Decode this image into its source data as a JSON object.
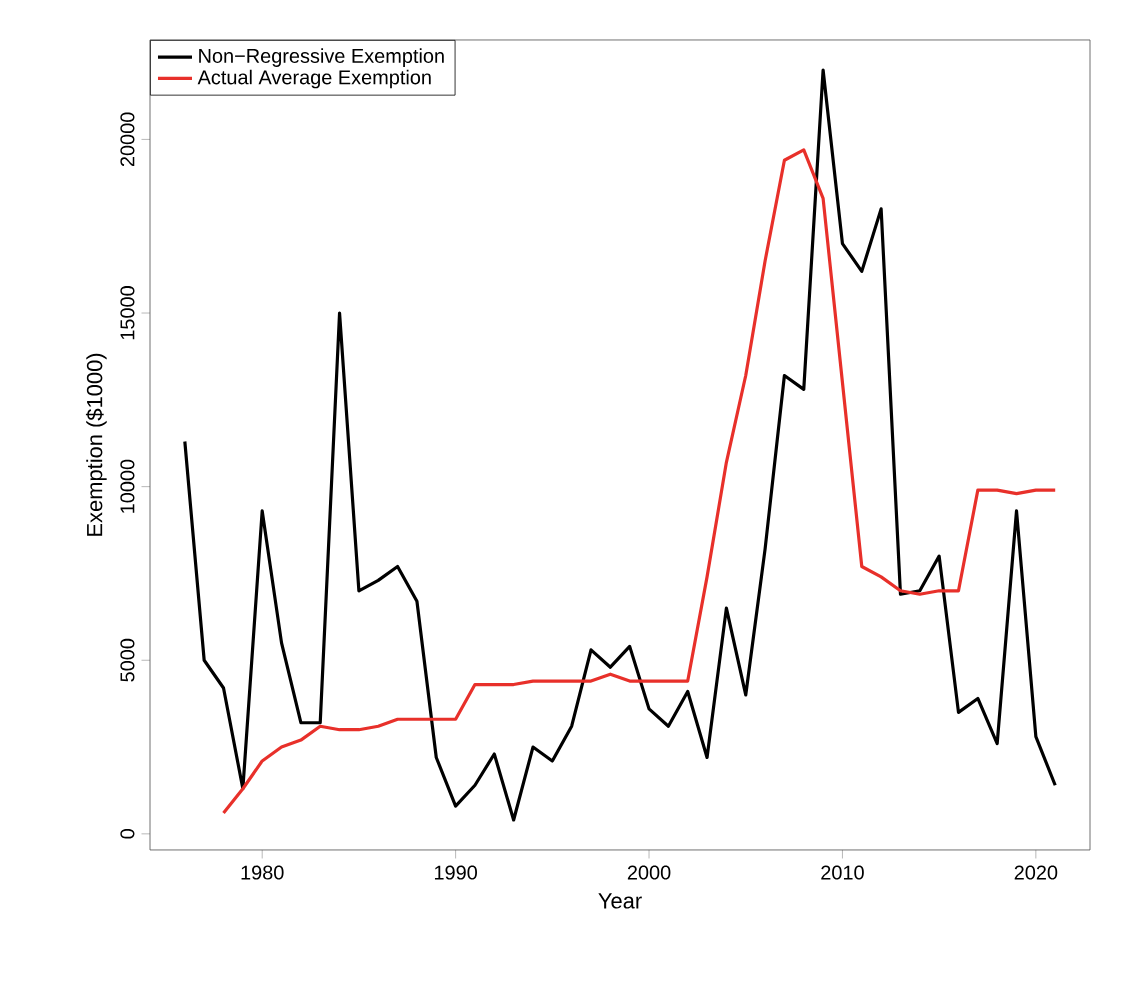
{
  "chart_data": {
    "type": "line",
    "xlabel": "Year",
    "ylabel": "Exemption ($1000)",
    "x": [
      1976,
      1977,
      1978,
      1979,
      1980,
      1981,
      1982,
      1983,
      1984,
      1985,
      1986,
      1987,
      1988,
      1989,
      1990,
      1991,
      1992,
      1993,
      1994,
      1995,
      1996,
      1997,
      1998,
      1999,
      2000,
      2001,
      2002,
      2003,
      2004,
      2005,
      2006,
      2007,
      2008,
      2009,
      2010,
      2011,
      2012,
      2013,
      2014,
      2015,
      2016,
      2017,
      2018,
      2019,
      2020,
      2021
    ],
    "series": [
      {
        "name": "Non−Regressive Exemption",
        "color": "#000000",
        "values": [
          11300,
          5000,
          4200,
          1300,
          9300,
          5500,
          3200,
          3200,
          15000,
          7000,
          7300,
          7700,
          6700,
          2200,
          800,
          1400,
          2300,
          400,
          2500,
          2100,
          3100,
          5300,
          4800,
          5400,
          3600,
          3100,
          4100,
          2200,
          6500,
          4000,
          8200,
          13200,
          12800,
          22000,
          17000,
          16200,
          18000,
          6900,
          7000,
          8000,
          3500,
          3900,
          2600,
          9300,
          2800,
          1400
        ]
      },
      {
        "name": "Actual Average Exemption",
        "color": "#e8302a",
        "values": [
          null,
          null,
          600,
          1300,
          2100,
          2500,
          2700,
          3100,
          3000,
          3000,
          3100,
          3300,
          3300,
          3300,
          3300,
          4300,
          4300,
          4300,
          4400,
          4400,
          4400,
          4400,
          4600,
          4400,
          4400,
          4400,
          4400,
          7400,
          10700,
          13200,
          16500,
          19400,
          19700,
          18300,
          13000,
          7700,
          7400,
          7000,
          6900,
          7000,
          7000,
          9900,
          9900,
          9800,
          9900,
          9900
        ]
      }
    ],
    "xlim": [
      1974.2,
      2022.8
    ],
    "ylim": [
      -464,
      22864
    ],
    "xticks": [
      1980,
      1990,
      2000,
      2010,
      2020
    ],
    "yticks": [
      0,
      5000,
      10000,
      15000,
      20000
    ],
    "grid": false,
    "legend": "top left",
    "marker": "none",
    "line_style": "solid"
  }
}
